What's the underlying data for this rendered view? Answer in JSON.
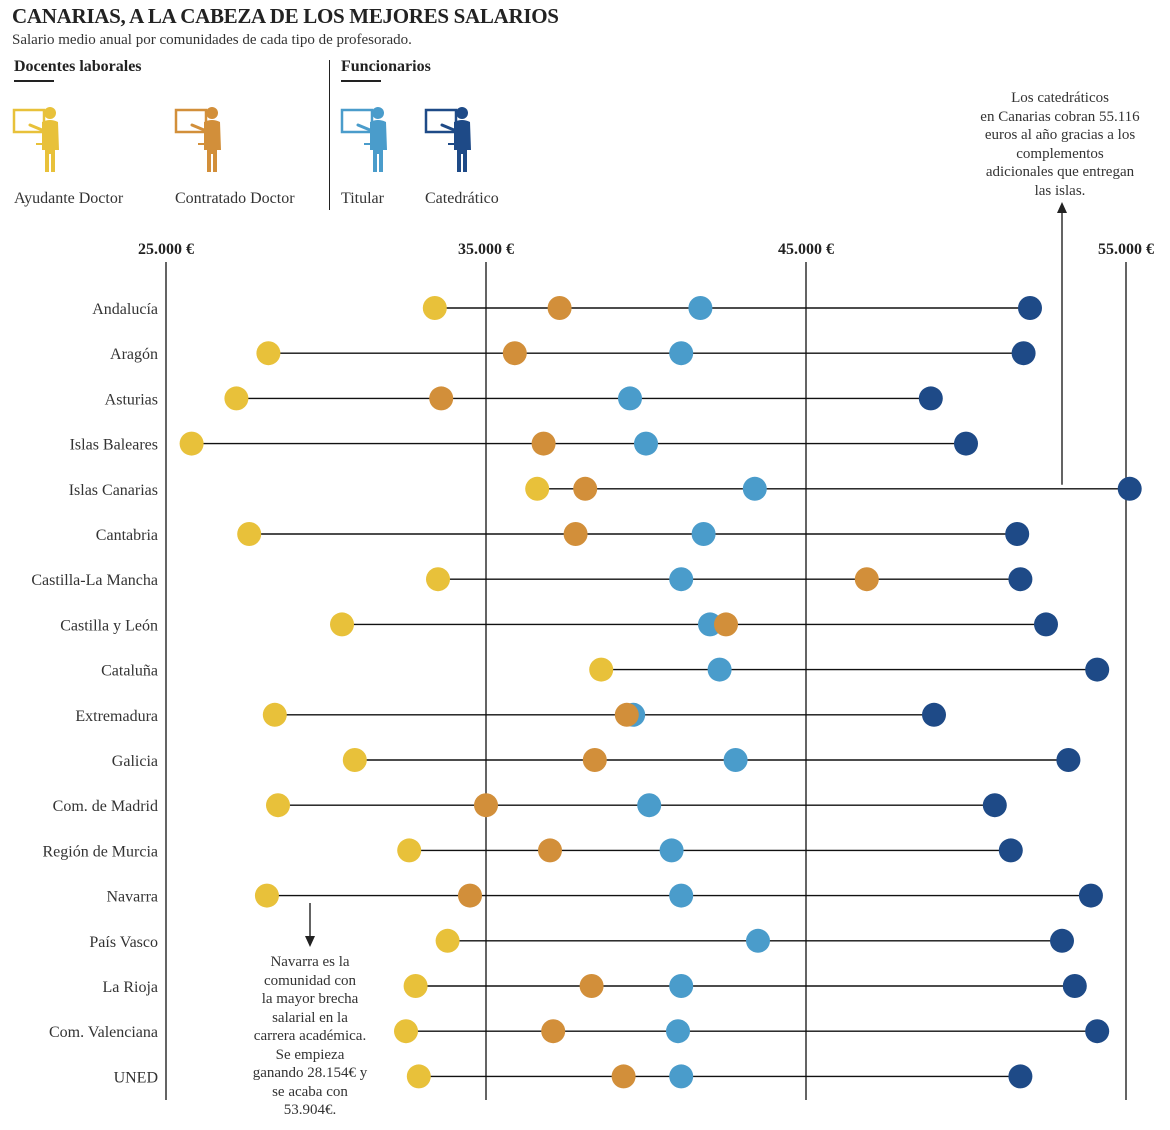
{
  "header": {
    "title": "CANARIAS, A LA CABEZA DE LOS MEJORES SALARIOS",
    "subtitle": "Salario medio anual por comunidades de cada tipo de profesorado."
  },
  "legend": {
    "group_laborales": "Docentes laborales",
    "group_funcionarios": "Funcionarios",
    "items": [
      {
        "label": "Ayudante Doctor",
        "color": "#e8c13a"
      },
      {
        "label": "Contratado Doctor",
        "color": "#d28f3a"
      },
      {
        "label": "Titular",
        "color": "#4a9ccb"
      },
      {
        "label": "Catedrático",
        "color": "#1e4a87"
      }
    ]
  },
  "annotations": {
    "canarias": [
      "Los catedráticos",
      "en Canarias cobran 55.116",
      "euros al año gracias a los",
      "complementos",
      "adicionales que entregan",
      "las islas."
    ],
    "navarra": [
      "Navarra es la",
      "comunidad con",
      "la mayor brecha",
      "salarial en la",
      "carrera académica.",
      "Se empieza",
      "ganando 28.154€ y",
      "se acaba con",
      "53.904€."
    ]
  },
  "chart_data": {
    "type": "dot-range",
    "xlim": [
      25000,
      55000
    ],
    "xticks": [
      25000,
      35000,
      45000,
      55000
    ],
    "xtick_labels": [
      "25.000 €",
      "35.000 €",
      "45.000 €",
      "55.000 €"
    ],
    "series_names": [
      "Ayudante Doctor",
      "Contratado Doctor",
      "Titular",
      "Catedrático"
    ],
    "series_colors": [
      "#e8c13a",
      "#d28f3a",
      "#4a9ccb",
      "#1e4a87"
    ],
    "draw_order": [
      0,
      2,
      1,
      3
    ],
    "categories": [
      "Andalucía",
      "Aragón",
      "Asturias",
      "Islas Baleares",
      "Islas Canarias",
      "Cantabria",
      "Castilla-La Mancha",
      "Castilla y León",
      "Cataluña",
      "Extremadura",
      "Galicia",
      "Com. de Madrid",
      "Región de Murcia",
      "Navarra",
      "País Vasco",
      "La Rioja",
      "Com. Valenciana",
      "UNED"
    ],
    "values": [
      [
        33400,
        37300,
        41700,
        52000
      ],
      [
        28200,
        35900,
        41100,
        51800
      ],
      [
        27200,
        33600,
        39500,
        48900
      ],
      [
        25800,
        36800,
        40000,
        50000
      ],
      [
        36600,
        38100,
        43400,
        55116
      ],
      [
        27600,
        37800,
        41800,
        51600
      ],
      [
        33500,
        46900,
        41100,
        51700
      ],
      [
        30500,
        42500,
        42000,
        52500
      ],
      [
        38600,
        null,
        42300,
        54100
      ],
      [
        28400,
        39400,
        39600,
        49000
      ],
      [
        30900,
        38400,
        42800,
        53200
      ],
      [
        28500,
        35000,
        40100,
        50900
      ],
      [
        32600,
        37000,
        40800,
        51400
      ],
      [
        28154,
        34500,
        41100,
        53904
      ],
      [
        33800,
        null,
        43500,
        53000
      ],
      [
        32800,
        38300,
        41100,
        53400
      ],
      [
        32500,
        37100,
        41000,
        54100
      ],
      [
        32900,
        39300,
        41100,
        51700
      ]
    ]
  }
}
